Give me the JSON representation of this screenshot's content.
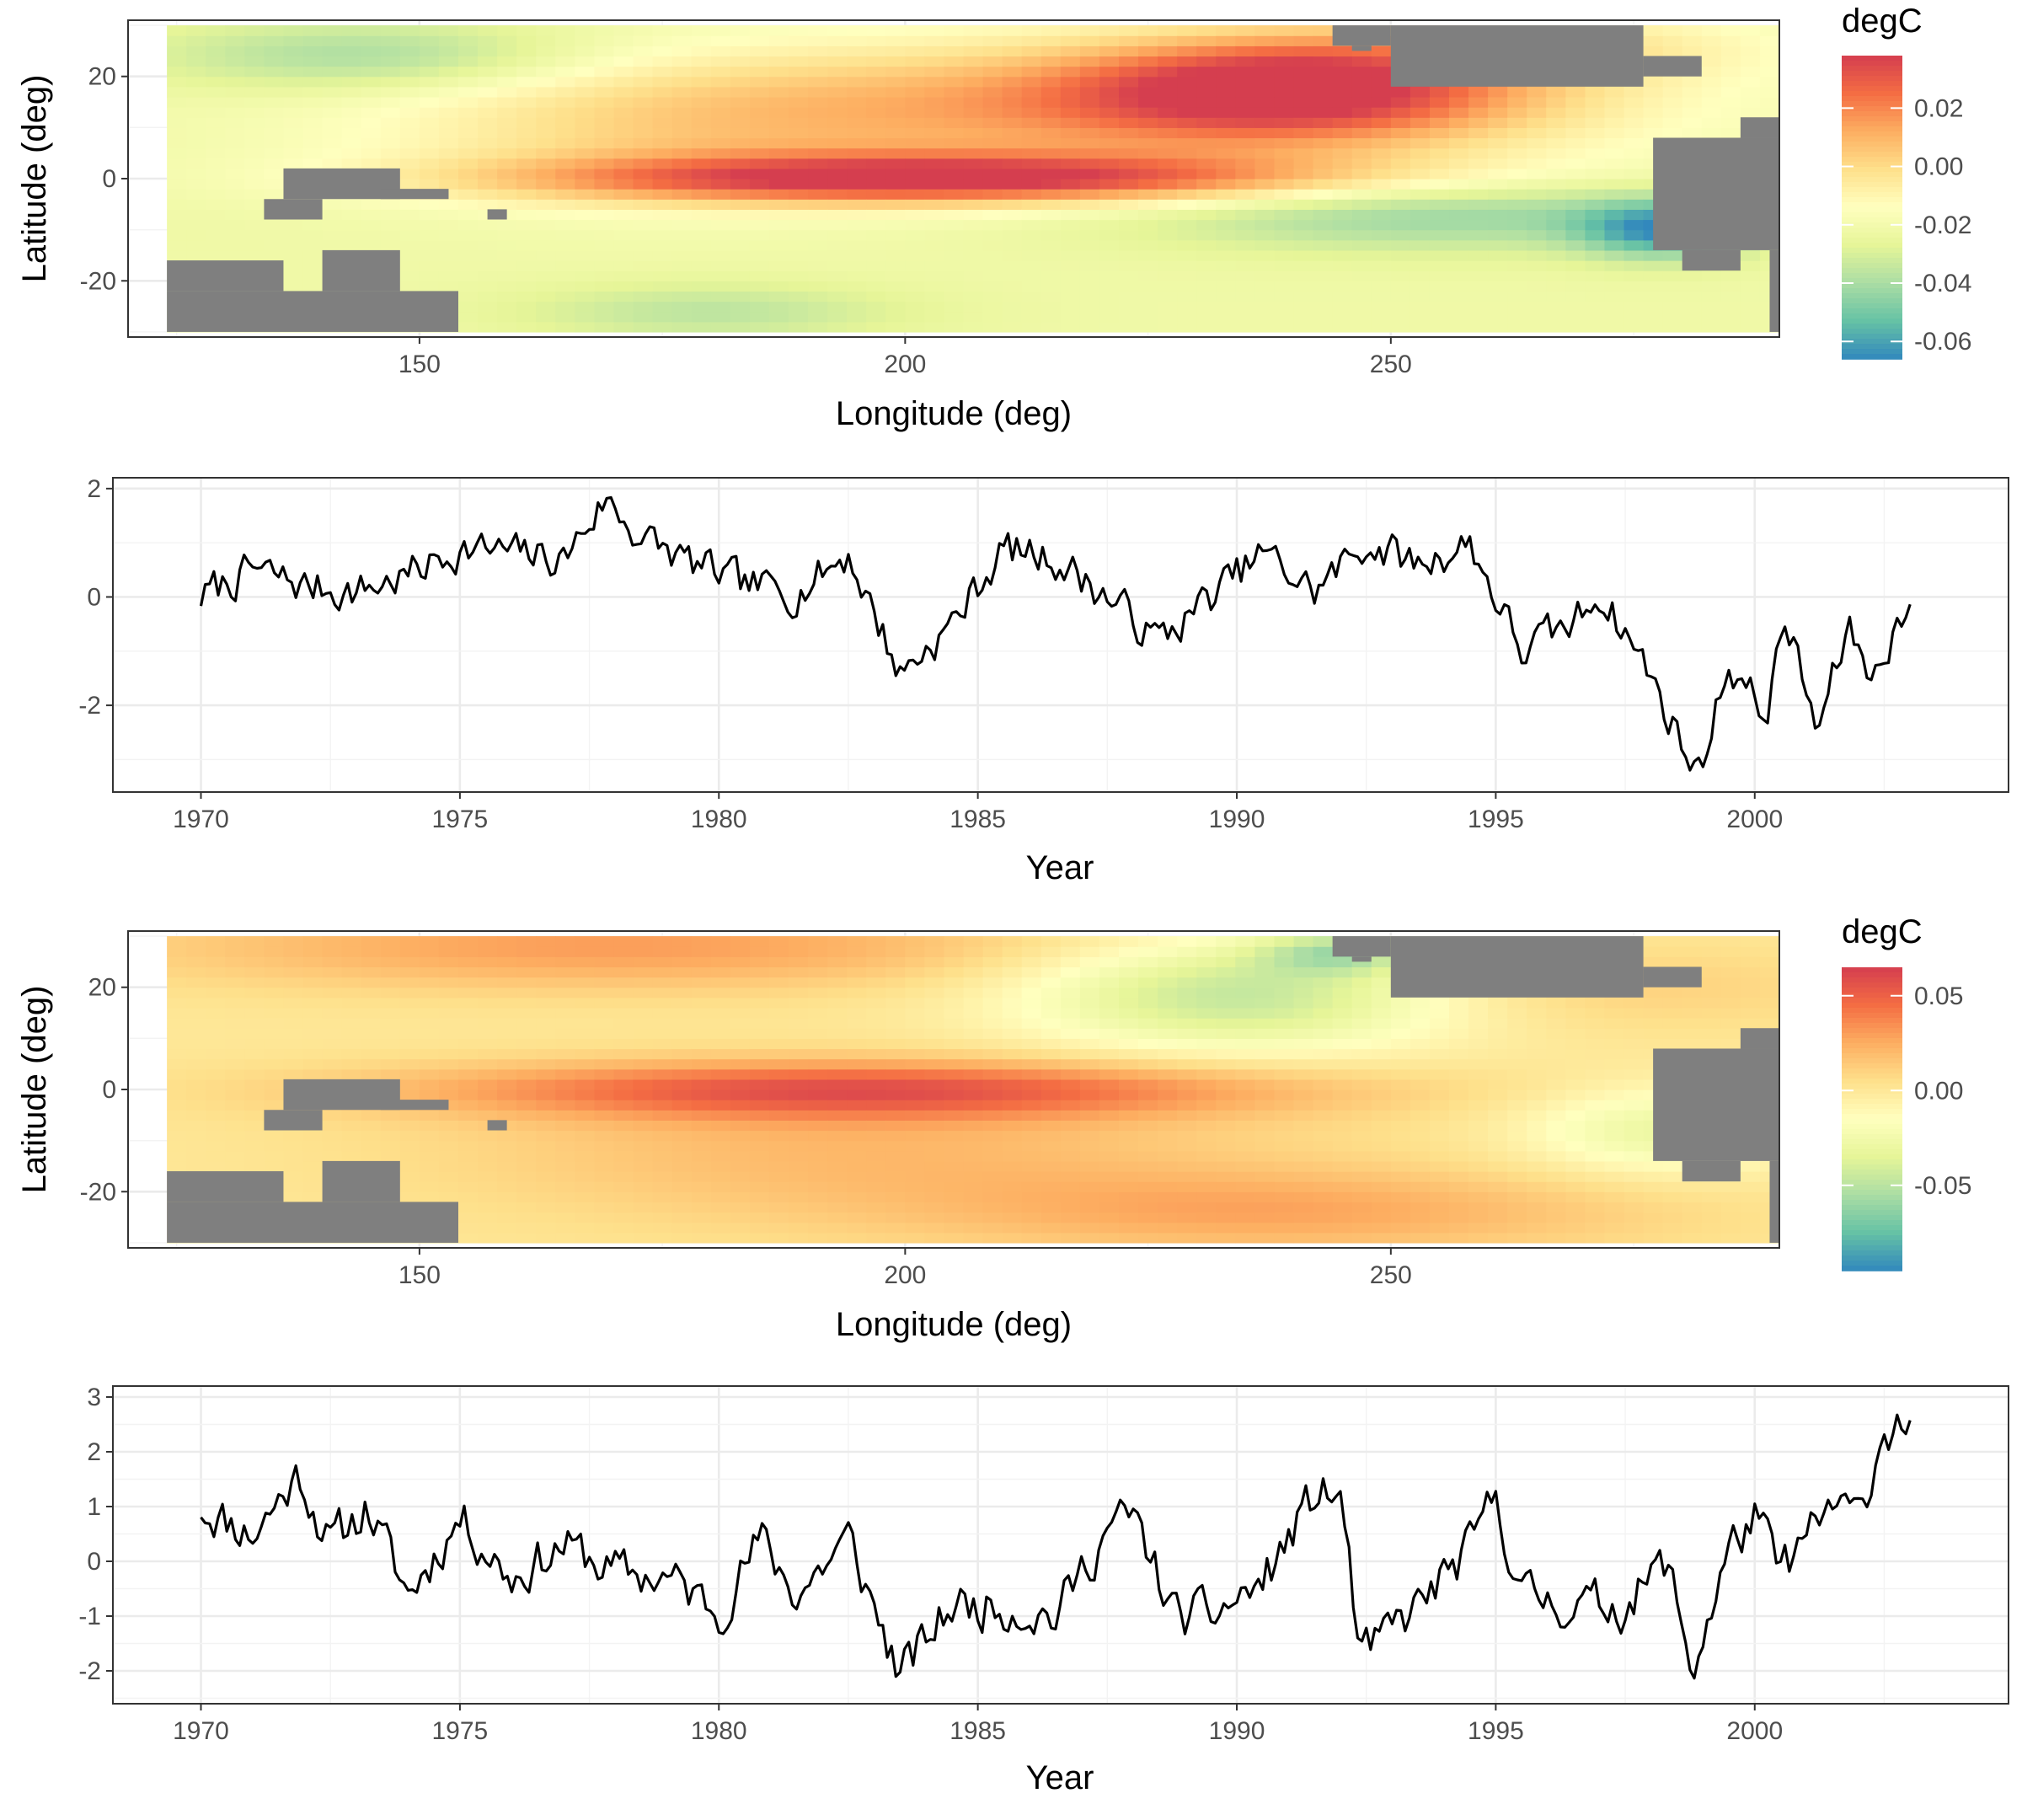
{
  "colors": {
    "land": "#7f7f7f",
    "line": "#000000",
    "palette_spectral": [
      "#3288bd",
      "#66c2a5",
      "#abdda4",
      "#e6f598",
      "#ffffbf",
      "#fee08b",
      "#fdae61",
      "#f46d43",
      "#d53e4f"
    ]
  },
  "chart_data": [
    {
      "id": "eof1-map",
      "type": "heatmap",
      "xlabel": "Longitude (deg)",
      "ylabel": "Latitude (deg)",
      "xlim": [
        120,
        290
      ],
      "ylim": [
        -31,
        31
      ],
      "x_ticks": [
        150,
        200,
        250
      ],
      "y_ticks": [
        -20,
        0,
        20
      ],
      "grid": true,
      "legend": {
        "title": "degC",
        "placement": "right",
        "range": [
          -0.066,
          0.038
        ],
        "ticks": [
          0.02,
          0.0,
          -0.02,
          -0.04,
          -0.06
        ],
        "tick_labels": [
          "0.02",
          "0.00",
          "-0.02",
          "-0.04",
          "-0.06"
        ]
      },
      "field": {
        "x_range": [
          124,
          290
        ],
        "y_range": [
          -30,
          30
        ],
        "base": -0.022,
        "blobs": [
          [
            203,
            0,
            30,
            3.5,
            0.058
          ],
          [
            240,
            18,
            16,
            7,
            0.05
          ],
          [
            215,
            14,
            38,
            9,
            0.032
          ],
          [
            175,
            8,
            20,
            10,
            0.01
          ],
          [
            145,
            24,
            16,
            5,
            -0.02
          ],
          [
            255,
            -7,
            22,
            5,
            -0.022
          ],
          [
            278,
            -10,
            6,
            4,
            -0.035
          ],
          [
            180,
            -26,
            14,
            4,
            -0.014
          ],
          [
            265,
            26,
            18,
            5,
            0.015
          ]
        ]
      },
      "land": [
        [
          124,
          -30,
          154,
          -22
        ],
        [
          124,
          -22,
          136,
          -16
        ],
        [
          140,
          -22,
          148,
          -14
        ],
        [
          134,
          -8,
          140,
          -4
        ],
        [
          136,
          -4,
          148,
          2
        ],
        [
          146,
          -4,
          153,
          -2
        ],
        [
          157,
          -8,
          159,
          -6
        ],
        [
          277,
          -14,
          290,
          8
        ],
        [
          286,
          8,
          290,
          12
        ],
        [
          289,
          -30,
          290,
          -14
        ],
        [
          280,
          -18,
          286,
          -14
        ],
        [
          250,
          18,
          276,
          30
        ],
        [
          276,
          20,
          282,
          24
        ],
        [
          244,
          26,
          250,
          30
        ],
        [
          246,
          25,
          248,
          26
        ]
      ]
    },
    {
      "id": "pc1-series",
      "type": "line",
      "xlabel": "Year",
      "ylabel": "",
      "xlim": [
        1968.3,
        2004.9
      ],
      "ylim": [
        -3.6,
        2.2
      ],
      "x_ticks": [
        1970,
        1975,
        1980,
        1985,
        1990,
        1995,
        2000
      ],
      "y_ticks": [
        -2,
        0,
        2
      ],
      "grid": true,
      "start": 1970.0,
      "step": 0.0833333,
      "knots": [
        [
          1970.0,
          0.0
        ],
        [
          1971.0,
          0.5
        ],
        [
          1972.0,
          0.2
        ],
        [
          1973.0,
          0.1
        ],
        [
          1974.0,
          0.4
        ],
        [
          1975.0,
          0.9
        ],
        [
          1976.0,
          0.8
        ],
        [
          1977.0,
          0.7
        ],
        [
          1977.8,
          1.8
        ],
        [
          1978.5,
          1.1
        ],
        [
          1979.5,
          0.6
        ],
        [
          1980.5,
          0.2
        ],
        [
          1981.5,
          0.1
        ],
        [
          1982.5,
          0.8
        ],
        [
          1983.5,
          -1.4
        ],
        [
          1984.5,
          -0.5
        ],
        [
          1985.5,
          0.9
        ],
        [
          1986.5,
          0.7
        ],
        [
          1987.5,
          0.0
        ],
        [
          1988.5,
          -0.8
        ],
        [
          1989.5,
          0.0
        ],
        [
          1990.5,
          0.8
        ],
        [
          1991.5,
          0.1
        ],
        [
          1992.5,
          1.0
        ],
        [
          1993.5,
          0.6
        ],
        [
          1994.5,
          1.0
        ],
        [
          1995.5,
          -1.0
        ],
        [
          1996.5,
          -0.5
        ],
        [
          1997.0,
          0.1
        ],
        [
          1997.8,
          -1.1
        ],
        [
          1998.9,
          -3.3
        ],
        [
          1999.5,
          -1.2
        ],
        [
          2000.2,
          -2.2
        ],
        [
          2000.6,
          -0.4
        ],
        [
          2001.2,
          -2.5
        ],
        [
          2001.8,
          -0.6
        ],
        [
          2002.3,
          -1.5
        ],
        [
          2002.8,
          -0.3
        ],
        [
          2003.0,
          -0.4
        ]
      ],
      "noise_amplitude": 0.32,
      "seed": 7
    },
    {
      "id": "eof2-map",
      "type": "heatmap",
      "xlabel": "Longitude (deg)",
      "ylabel": "Latitude (deg)",
      "xlim": [
        120,
        290
      ],
      "ylim": [
        -31,
        31
      ],
      "x_ticks": [
        150,
        200,
        250
      ],
      "y_ticks": [
        -20,
        0,
        20
      ],
      "grid": true,
      "legend": {
        "title": "degC",
        "placement": "right",
        "range": [
          -0.095,
          0.065
        ],
        "ticks": [
          0.05,
          0.0,
          -0.05
        ],
        "tick_labels": [
          "0.05",
          "0.00",
          "-0.05"
        ]
      },
      "field": {
        "x_range": [
          124,
          290
        ],
        "y_range": [
          -30,
          30
        ],
        "base": 0.0,
        "blobs": [
          [
            195,
            0,
            32,
            4,
            0.05
          ],
          [
            170,
            28,
            34,
            6,
            0.03
          ],
          [
            195,
            -12,
            30,
            10,
            0.02
          ],
          [
            240,
            -24,
            26,
            6,
            0.025
          ],
          [
            235,
            19,
            16,
            8,
            -0.05
          ],
          [
            245,
            27,
            6,
            3,
            -0.04
          ],
          [
            278,
            -8,
            10,
            6,
            -0.03
          ],
          [
            270,
            20,
            20,
            6,
            0.012
          ]
        ]
      },
      "land": [
        [
          124,
          -30,
          154,
          -22
        ],
        [
          124,
          -22,
          136,
          -16
        ],
        [
          140,
          -22,
          148,
          -14
        ],
        [
          134,
          -8,
          140,
          -4
        ],
        [
          136,
          -4,
          148,
          2
        ],
        [
          146,
          -4,
          153,
          -2
        ],
        [
          157,
          -8,
          159,
          -6
        ],
        [
          277,
          -14,
          290,
          8
        ],
        [
          286,
          8,
          290,
          12
        ],
        [
          289,
          -30,
          290,
          -14
        ],
        [
          280,
          -18,
          286,
          -14
        ],
        [
          250,
          18,
          276,
          30
        ],
        [
          276,
          20,
          282,
          24
        ],
        [
          244,
          26,
          250,
          30
        ],
        [
          246,
          25,
          248,
          26
        ]
      ]
    },
    {
      "id": "pc2-series",
      "type": "line",
      "xlabel": "Year",
      "ylabel": "",
      "xlim": [
        1968.3,
        2004.9
      ],
      "ylim": [
        -2.6,
        3.2
      ],
      "x_ticks": [
        1970,
        1975,
        1980,
        1985,
        1990,
        1995,
        2000
      ],
      "y_ticks": [
        -2,
        -1,
        0,
        1,
        2,
        3
      ],
      "grid": true,
      "start": 1970.0,
      "step": 0.0833333,
      "knots": [
        [
          1970.0,
          1.0
        ],
        [
          1971.0,
          0.5
        ],
        [
          1971.9,
          1.6
        ],
        [
          1972.5,
          0.3
        ],
        [
          1973.2,
          1.0
        ],
        [
          1974.0,
          -0.6
        ],
        [
          1975.0,
          0.8
        ],
        [
          1976.0,
          -0.3
        ],
        [
          1977.0,
          0.3
        ],
        [
          1978.0,
          -0.2
        ],
        [
          1979.0,
          -0.3
        ],
        [
          1980.0,
          -0.9
        ],
        [
          1980.8,
          0.4
        ],
        [
          1981.5,
          -0.6
        ],
        [
          1982.5,
          0.4
        ],
        [
          1983.5,
          -2.1
        ],
        [
          1984.5,
          -0.8
        ],
        [
          1985.5,
          -0.8
        ],
        [
          1986.5,
          -1.0
        ],
        [
          1987.5,
          0.6
        ],
        [
          1988.0,
          0.8
        ],
        [
          1988.8,
          -1.0
        ],
        [
          1989.5,
          -1.0
        ],
        [
          1990.5,
          -0.4
        ],
        [
          1991.5,
          1.2
        ],
        [
          1992.0,
          1.2
        ],
        [
          1992.4,
          -1.8
        ],
        [
          1993.5,
          -0.8
        ],
        [
          1994.5,
          0.2
        ],
        [
          1995.0,
          1.2
        ],
        [
          1995.5,
          -0.6
        ],
        [
          1996.5,
          -0.8
        ],
        [
          1997.5,
          -0.8
        ],
        [
          1998.3,
          0.0
        ],
        [
          1998.8,
          -2.0
        ],
        [
          1999.5,
          0.2
        ],
        [
          2000.0,
          0.8
        ],
        [
          2000.5,
          -0.2
        ],
        [
          2001.5,
          1.0
        ],
        [
          2002.0,
          0.8
        ],
        [
          2002.5,
          2.4
        ],
        [
          2003.0,
          2.6
        ]
      ],
      "noise_amplitude": 0.38,
      "seed": 11
    }
  ]
}
